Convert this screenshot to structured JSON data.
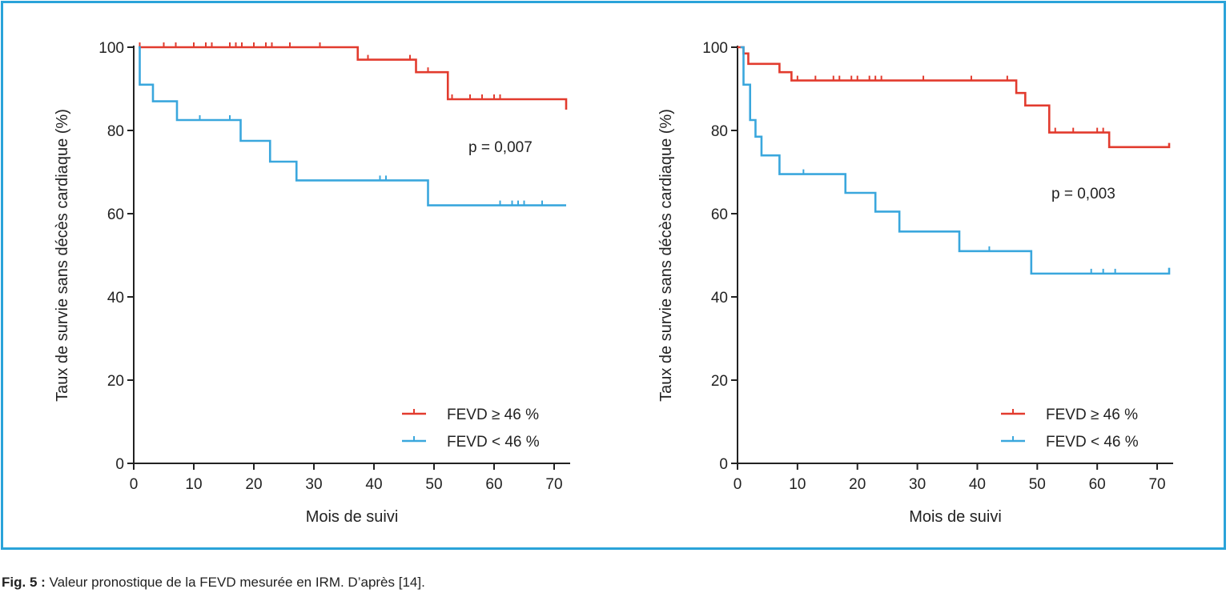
{
  "colors": {
    "frame": "#2aa3d9",
    "high": "#e23b2e",
    "low": "#3aa7dd",
    "axis": "#222222"
  },
  "caption": {
    "prefix": "Fig. 5 :",
    "text": "Valeur pronostique de la FEVD mesurée en IRM. D’après [14]."
  },
  "chart_data": [
    {
      "type": "line",
      "step": true,
      "ylabel": "Taux de survie sans décès cardiaque (%)",
      "xlabel": "Mois de suivi",
      "xlim": [
        0,
        72
      ],
      "ylim": [
        0,
        100
      ],
      "xticks": [
        0,
        10,
        20,
        30,
        40,
        50,
        60,
        70
      ],
      "yticks": [
        0,
        20,
        40,
        60,
        80,
        100
      ],
      "legend_position": "bottom-right",
      "annotation": "p = 0,007",
      "series": [
        {
          "name": "FEVD ≥ 46 %",
          "color_key": "high",
          "x": [
            0.8,
            37.3,
            47.0,
            52.3,
            72
          ],
          "y": [
            100,
            97,
            94,
            87.5,
            85
          ],
          "censored": [
            [
              1,
              100
            ],
            [
              5,
              100
            ],
            [
              7,
              100
            ],
            [
              10,
              100
            ],
            [
              12,
              100
            ],
            [
              13,
              100
            ],
            [
              16,
              100
            ],
            [
              17,
              100
            ],
            [
              18,
              100
            ],
            [
              20,
              100
            ],
            [
              22,
              100
            ],
            [
              23,
              100
            ],
            [
              26,
              100
            ],
            [
              31,
              100
            ],
            [
              39,
              97
            ],
            [
              46,
              97
            ],
            [
              49,
              94
            ],
            [
              53,
              87.5
            ],
            [
              56,
              87.5
            ],
            [
              58,
              87.5
            ],
            [
              60,
              87.5
            ],
            [
              61,
              87.5
            ]
          ]
        },
        {
          "name": "FEVD < 46 %",
          "color_key": "low",
          "x": [
            0.8,
            1.0,
            3.2,
            7.2,
            17.8,
            22.7,
            27.1,
            49.0,
            72
          ],
          "y": [
            100,
            91,
            87,
            82.5,
            77.5,
            72.5,
            68,
            62,
            62
          ],
          "censored": [
            [
              11,
              82.5
            ],
            [
              16,
              82.5
            ],
            [
              41,
              68
            ],
            [
              42,
              68
            ],
            [
              61,
              62
            ],
            [
              63,
              62
            ],
            [
              64,
              62
            ],
            [
              65,
              62
            ],
            [
              68,
              62
            ]
          ]
        }
      ]
    },
    {
      "type": "line",
      "step": true,
      "ylabel": "Taux de survie sans décès cardiaque (%)",
      "xlabel": "Mois de suivi",
      "xlim": [
        0,
        72
      ],
      "ylim": [
        0,
        100
      ],
      "xticks": [
        0,
        10,
        20,
        30,
        40,
        50,
        60,
        70
      ],
      "yticks": [
        0,
        20,
        40,
        60,
        80,
        100
      ],
      "legend_position": "bottom-right",
      "annotation": "p = 0,003",
      "series": [
        {
          "name": "FEVD ≥ 46 %",
          "color_key": "high",
          "x": [
            0.0,
            1.0,
            1.8,
            7.0,
            9.0,
            46.5,
            48.0,
            52.0,
            62.0,
            72
          ],
          "y": [
            100,
            98.5,
            96,
            94,
            92,
            89,
            86,
            79.5,
            76,
            77
          ],
          "censored": [
            [
              10,
              92
            ],
            [
              13,
              92
            ],
            [
              16,
              92
            ],
            [
              17,
              92
            ],
            [
              19,
              92
            ],
            [
              20,
              92
            ],
            [
              22,
              92
            ],
            [
              23,
              92
            ],
            [
              24,
              92
            ],
            [
              31,
              92
            ],
            [
              39,
              92
            ],
            [
              45,
              92
            ],
            [
              53,
              79.5
            ],
            [
              56,
              79.5
            ],
            [
              60,
              79.5
            ],
            [
              61,
              79.5
            ]
          ]
        },
        {
          "name": "FEVD < 46 %",
          "color_key": "low",
          "x": [
            0.5,
            1.0,
            2.1,
            3.0,
            4.0,
            7.0,
            18.0,
            23.0,
            27.0,
            37.0,
            49.0,
            72
          ],
          "y": [
            100,
            91,
            82.5,
            78.5,
            74,
            69.5,
            65,
            60.5,
            55.7,
            51,
            45.6,
            47
          ],
          "censored": [
            [
              11,
              69.5
            ],
            [
              42,
              51
            ],
            [
              59,
              45.6
            ],
            [
              61,
              45.6
            ],
            [
              63,
              45.6
            ]
          ]
        }
      ]
    }
  ]
}
